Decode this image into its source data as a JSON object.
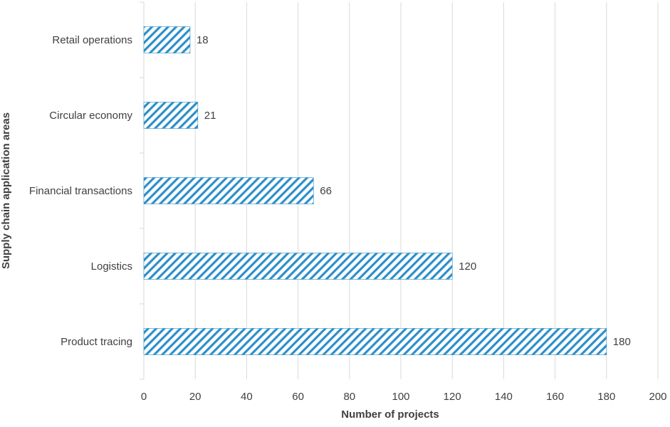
{
  "chart_data": {
    "type": "bar",
    "orientation": "horizontal",
    "categories": [
      "Product tracing",
      "Logistics",
      "Financial transactions",
      "Circular economy",
      "Retail operations"
    ],
    "values": [
      180,
      120,
      66,
      21,
      18
    ],
    "xlabel": "Number of projects",
    "ylabel": "Supply chain application areas",
    "xlim": [
      0,
      200
    ],
    "xticks": [
      0,
      20,
      40,
      60,
      80,
      100,
      120,
      140,
      160,
      180,
      200
    ],
    "grid": "vertical",
    "bar_fill": "diagonal-hatch",
    "bar_color": "#2E8FC9",
    "data_labels": true,
    "legend": "none"
  }
}
